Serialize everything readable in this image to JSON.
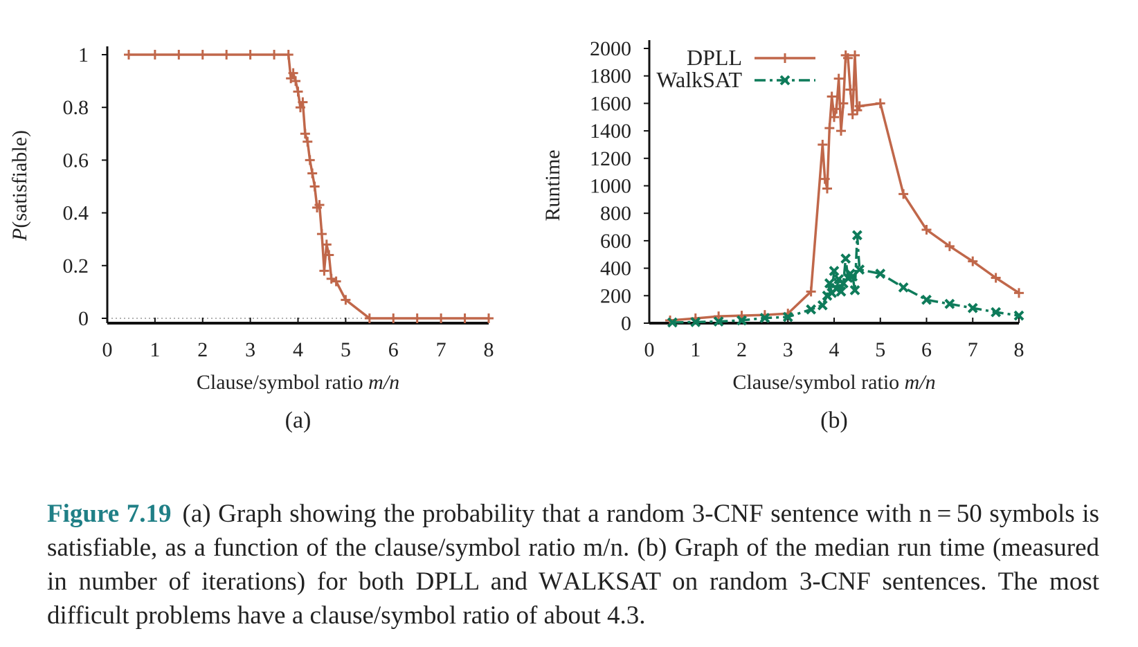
{
  "chart_data": [
    {
      "type": "line",
      "sublabel": "(a)",
      "xlabel": "Clause/symbol ratio m/n",
      "ylabel": "P(satisfiable)",
      "xlim": [
        0,
        8
      ],
      "ylim": [
        0,
        1
      ],
      "xticks": [
        "0",
        "1",
        "2",
        "3",
        "4",
        "5",
        "6",
        "7",
        "8"
      ],
      "yticks": [
        "0",
        "0.2",
        "0.4",
        "0.6",
        "0.8",
        "1"
      ],
      "dotted_zero_line": true,
      "series": [
        {
          "color": "#c0674a",
          "marker": "plus",
          "x": [
            0.45,
            1.0,
            1.5,
            2.0,
            2.5,
            3.0,
            3.5,
            3.8,
            3.85,
            3.9,
            3.95,
            4.0,
            4.05,
            4.1,
            4.15,
            4.2,
            4.25,
            4.3,
            4.35,
            4.4,
            4.45,
            4.5,
            4.55,
            4.6,
            4.65,
            4.7,
            4.8,
            5.0,
            5.5,
            6.0,
            6.5,
            7.0,
            7.5,
            8.0
          ],
          "y": [
            1,
            1,
            1,
            1,
            1,
            1,
            1,
            1,
            0.91,
            0.93,
            0.9,
            0.86,
            0.8,
            0.82,
            0.7,
            0.67,
            0.6,
            0.55,
            0.5,
            0.42,
            0.43,
            0.32,
            0.18,
            0.28,
            0.24,
            0.15,
            0.14,
            0.07,
            0,
            0,
            0,
            0,
            0,
            0
          ]
        }
      ]
    },
    {
      "type": "line",
      "sublabel": "(b)",
      "xlabel": "Clause/symbol ratio m/n",
      "ylabel": "Runtime",
      "xlim": [
        0,
        8
      ],
      "ylim": [
        0,
        2000
      ],
      "xticks": [
        "0",
        "1",
        "2",
        "3",
        "4",
        "5",
        "6",
        "7",
        "8"
      ],
      "yticks": [
        "0",
        "200",
        "400",
        "600",
        "800",
        "1000",
        "1200",
        "1400",
        "1600",
        "1800",
        "2000"
      ],
      "legend_position": "top-left",
      "series": [
        {
          "name": "DPLL",
          "color": "#c0674a",
          "marker": "plus",
          "dash": "solid",
          "x": [
            0.45,
            1.0,
            1.5,
            2.0,
            2.5,
            3.0,
            3.5,
            3.75,
            3.8,
            3.85,
            3.9,
            3.95,
            4.0,
            4.05,
            4.1,
            4.15,
            4.2,
            4.25,
            4.3,
            4.35,
            4.4,
            4.45,
            4.5,
            4.55,
            5.0,
            5.5,
            6.0,
            6.5,
            7.0,
            7.5,
            8.0
          ],
          "y": [
            20,
            35,
            50,
            55,
            60,
            70,
            230,
            1300,
            1050,
            980,
            1420,
            1650,
            1500,
            1560,
            1780,
            1400,
            1600,
            1950,
            1930,
            1700,
            1520,
            1950,
            1550,
            1580,
            1600,
            940,
            680,
            560,
            450,
            330,
            220
          ]
        },
        {
          "name": "WalkSAT",
          "color": "#0e7b5a",
          "marker": "x",
          "dash": "dash-dot",
          "x": [
            0.5,
            1.0,
            1.5,
            2.0,
            2.5,
            3.0,
            3.5,
            3.75,
            3.85,
            3.9,
            3.95,
            4.0,
            4.05,
            4.1,
            4.15,
            4.2,
            4.25,
            4.3,
            4.35,
            4.4,
            4.45,
            4.5,
            4.55,
            5.0,
            5.5,
            6.0,
            6.5,
            7.0,
            7.5,
            8.0
          ],
          "y": [
            5,
            8,
            12,
            20,
            38,
            45,
            100,
            130,
            200,
            290,
            220,
            380,
            250,
            320,
            230,
            290,
            470,
            330,
            360,
            340,
            240,
            640,
            390,
            360,
            260,
            170,
            140,
            110,
            80,
            55
          ]
        }
      ]
    }
  ],
  "caption": {
    "label": "Figure 7.19",
    "part1": "(a) Graph showing the probability that a random 3-CNF sentence with n = 50 symbols is satisfiable, as a function of the clause/symbol ratio m/n. (b) Graph of the median run time (measured in number of iterations) for both DPLL and ",
    "walk_a": "W",
    "walk_b": "ALK",
    "walk_c": "SAT",
    "part2": " on random 3-CNF sentences. The most difficult problems have a clause/symbol ratio of about 4.3."
  }
}
